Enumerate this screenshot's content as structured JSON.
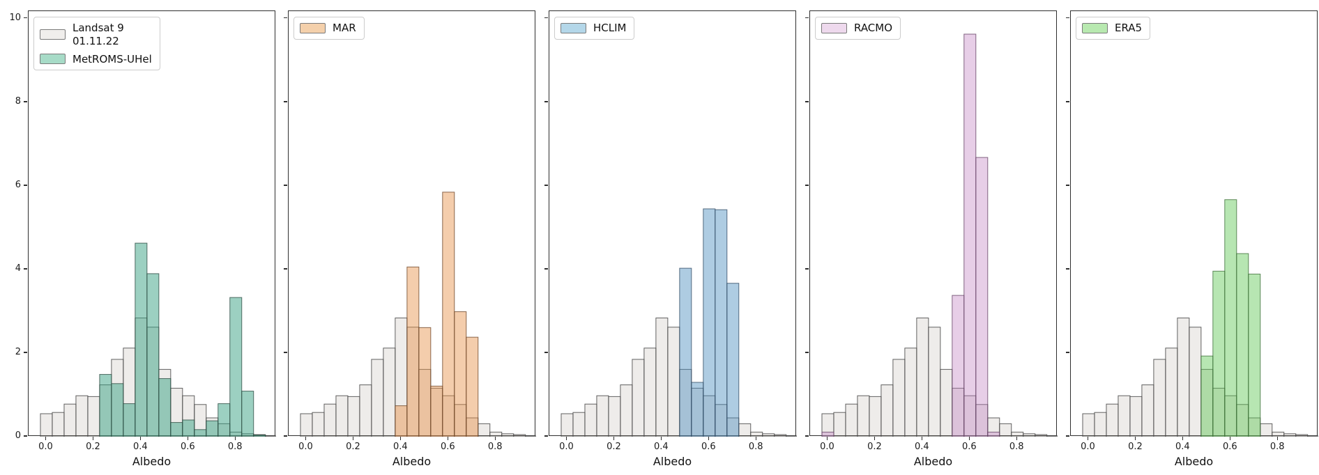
{
  "figure_title": "",
  "chart_data": {
    "type": "histogram",
    "xlabel": "Albedo",
    "x_ticks": [
      0.0,
      0.2,
      0.4,
      0.6,
      0.8
    ],
    "y_ticks": [
      0,
      2,
      4,
      6,
      8,
      10
    ],
    "xlim": [
      -0.075,
      0.97
    ],
    "ylim": [
      0,
      10.18
    ],
    "grid": false,
    "legend_position": "upper-left",
    "bin_width": 0.05,
    "bin_centers": [
      0.0,
      0.05,
      0.1,
      0.15,
      0.2,
      0.25,
      0.3,
      0.35,
      0.4,
      0.45,
      0.5,
      0.55,
      0.6,
      0.65,
      0.7,
      0.75,
      0.8,
      0.85,
      0.9,
      0.95
    ],
    "reference": {
      "name": "Landsat 9 01.11.22",
      "legend_label": "Landsat 9\n01.11.22",
      "fill": "rgba(178,168,160,0.22)",
      "edge": "rgba(70,70,70,0.85)",
      "legend_patch": "#f0eeec",
      "values": [
        0.55,
        0.58,
        0.78,
        0.98,
        0.96,
        1.24,
        1.85,
        2.12,
        2.84,
        2.62,
        1.61,
        1.16,
        0.98,
        0.77,
        0.45,
        0.31,
        0.11,
        0.07,
        0.05,
        0.02
      ]
    },
    "panels": [
      {
        "model": "MetROMS-UHel",
        "fill": "rgba(58,161,131,0.5)",
        "edge": "rgba(45,75,65,0.8)",
        "legend_patch": "#a7dbc7",
        "values": [
          0,
          0,
          0,
          0,
          0,
          1.49,
          1.27,
          0.79,
          4.63,
          3.9,
          1.39,
          0.34,
          0.4,
          0.17,
          0.38,
          0.79,
          3.33,
          1.09,
          0.04,
          0
        ]
      },
      {
        "model": "MAR",
        "fill": "rgba(230,145,70,0.45)",
        "edge": "rgba(110,70,40,0.8)",
        "legend_patch": "#f4d0ab",
        "values": [
          0,
          0,
          0,
          0,
          0,
          0,
          0,
          0,
          0.74,
          4.06,
          2.61,
          1.21,
          5.85,
          2.99,
          2.38,
          0,
          0,
          0,
          0,
          0
        ]
      },
      {
        "model": "HCLIM",
        "fill": "rgba(76,143,191,0.45)",
        "edge": "rgba(50,75,100,0.8)",
        "legend_patch": "#b4d7e9",
        "values": [
          0,
          0,
          0,
          0,
          0,
          0,
          0,
          0,
          0,
          0,
          4.03,
          1.3,
          5.45,
          5.43,
          3.67,
          0,
          0,
          0,
          0,
          0
        ]
      },
      {
        "model": "RACMO",
        "fill": "rgba(193,127,192,0.38)",
        "edge": "rgba(100,65,100,0.8)",
        "legend_patch": "#eed9ed",
        "values": [
          0.11,
          0,
          0,
          0,
          0,
          0,
          0,
          0,
          0,
          0,
          0,
          3.38,
          9.63,
          6.68,
          0.11,
          0,
          0,
          0,
          0,
          0
        ]
      },
      {
        "model": "ERA5",
        "fill": "rgba(95,200,85,0.45)",
        "edge": "rgba(60,110,55,0.8)",
        "legend_patch": "#b8e9b0",
        "values": [
          0,
          0,
          0,
          0,
          0,
          0,
          0,
          0,
          0,
          0,
          1.93,
          3.96,
          5.67,
          4.38,
          3.89,
          0,
          0,
          0,
          0,
          0
        ]
      }
    ]
  }
}
